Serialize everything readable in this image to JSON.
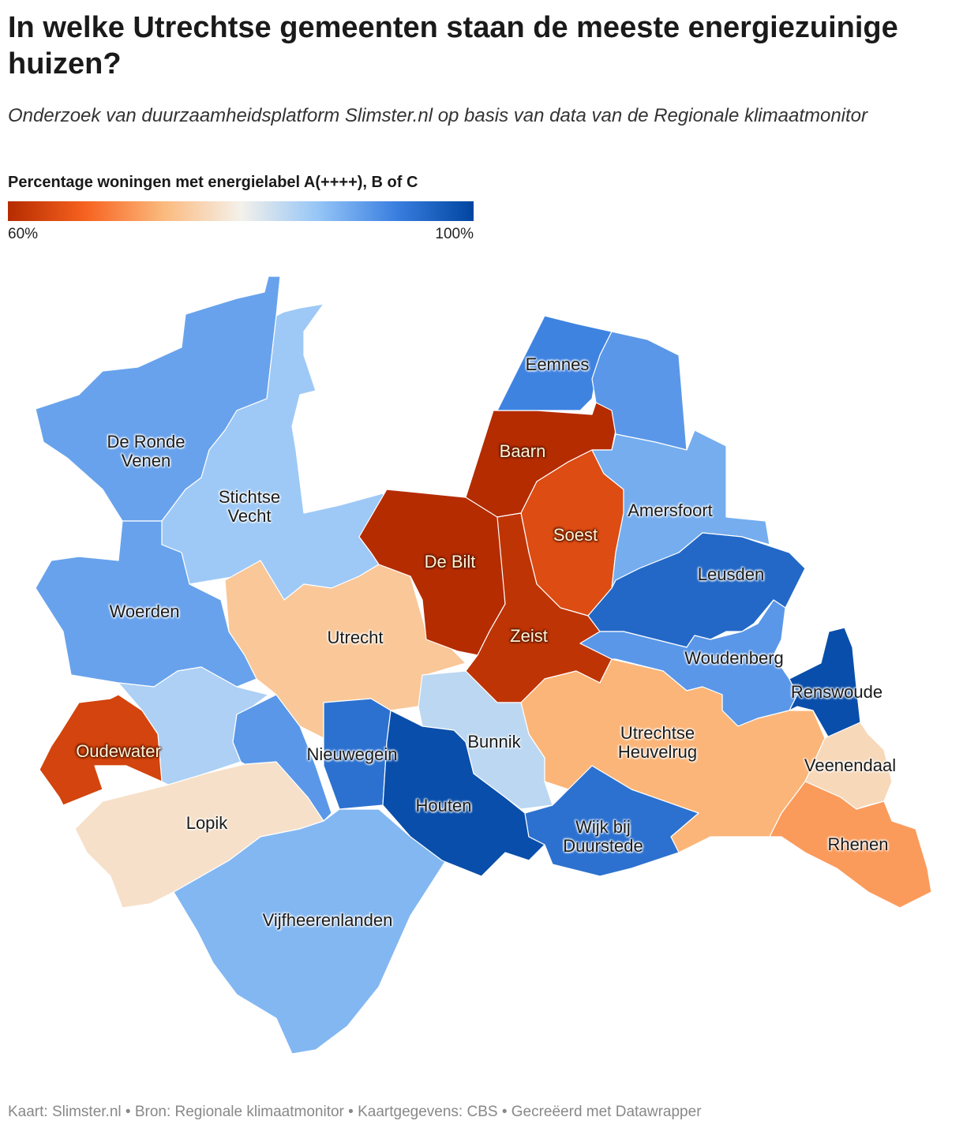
{
  "title": "In welke Utrechtse gemeenten staan de meeste energiezuinige huizen?",
  "subtitle": "Onderzoek van duurzaamheidsplatform Slimster.nl op basis van data van de Regionale klimaatmonitor",
  "legend": {
    "title": "Percentage woningen met energielabel A(++++), B of C",
    "colors": [
      "#b52c00",
      "#f7621f",
      "#fbb97d",
      "#f4f1ea",
      "#95c5f7",
      "#3a7fe0",
      "#0045a0"
    ],
    "ticks": [
      {
        "value": 60,
        "label": "60%"
      },
      {
        "value": 100,
        "label": "100%"
      }
    ]
  },
  "regions": [
    {
      "name": "De Ronde Venen",
      "value": 90
    },
    {
      "name": "Stichtse Vecht",
      "value": 86
    },
    {
      "name": "Woerden",
      "value": 90
    },
    {
      "name": null,
      "value": 85
    },
    {
      "name": "Oudewater",
      "value": 63
    },
    {
      "name": "Lopik",
      "value": 78
    },
    {
      "name": "Vijfheerenlanden",
      "value": 88
    },
    {
      "name": null,
      "value": 91
    },
    {
      "name": "Utrecht",
      "value": 75
    },
    {
      "name": "Nieuwegein",
      "value": 95
    },
    {
      "name": "De Bilt",
      "value": 60
    },
    {
      "name": "Baarn",
      "value": 60
    },
    {
      "name": "Soest",
      "value": 64
    },
    {
      "name": "Zeist",
      "value": 61
    },
    {
      "name": "Eemnes",
      "value": 93
    },
    {
      "name": null,
      "value": 91
    },
    {
      "name": "Amersfoort",
      "value": 89
    },
    {
      "name": "Leusden",
      "value": 96
    },
    {
      "name": "Woudenberg",
      "value": 91
    },
    {
      "name": "Renswoude",
      "value": 99
    },
    {
      "name": "Utrechtse Heuvelrug",
      "value": 73
    },
    {
      "name": "Veenendaal",
      "value": 77
    },
    {
      "name": "Rhenen",
      "value": 71
    },
    {
      "name": "Bunnik",
      "value": 84
    },
    {
      "name": "Houten",
      "value": 99
    },
    {
      "name": "Wijk bij Duurstede",
      "value": 95
    }
  ],
  "footer": "Kaart: Slimster.nl • Bron: Regionale klimaatmonitor • Kaartgegevens: CBS • Gecreëerd met Datawrapper"
}
